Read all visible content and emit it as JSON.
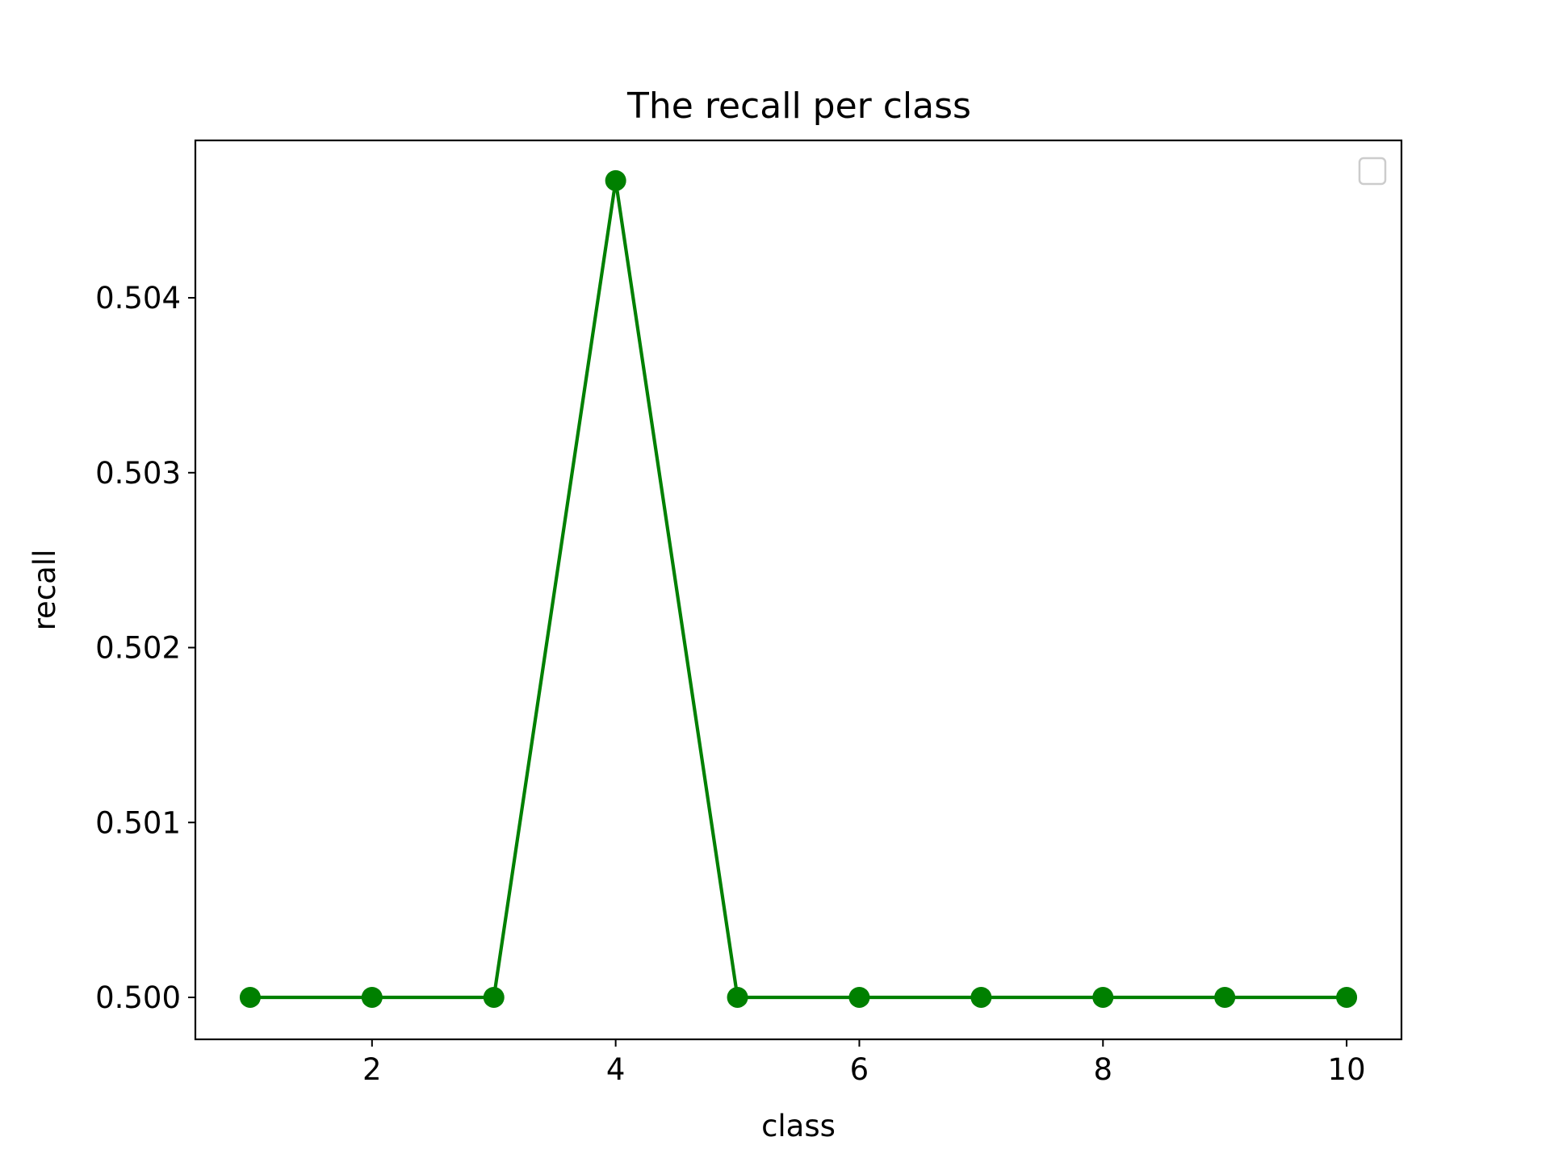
{
  "chart_data": {
    "type": "line",
    "title": "The recall per class",
    "xlabel": "class",
    "ylabel": "recall",
    "x": [
      1,
      2,
      3,
      4,
      5,
      6,
      7,
      8,
      9,
      10
    ],
    "series": [
      {
        "values": [
          0.5,
          0.5,
          0.5,
          0.50467,
          0.5,
          0.5,
          0.5,
          0.5,
          0.5,
          0.5
        ],
        "color": "#008000",
        "marker": "circle"
      }
    ],
    "xlim": [
      0.55,
      10.45
    ],
    "ylim": [
      0.49976,
      0.5049
    ],
    "xticks": [
      2,
      4,
      6,
      8,
      10
    ],
    "xtick_labels": [
      "2",
      "4",
      "6",
      "8",
      "10"
    ],
    "yticks": [
      0.5,
      0.501,
      0.502,
      0.503,
      0.504
    ],
    "ytick_labels": [
      "0.500",
      "0.501",
      "0.502",
      "0.503",
      "0.504"
    ],
    "grid": false,
    "legend": {
      "placement": "top-right",
      "entries": []
    }
  }
}
